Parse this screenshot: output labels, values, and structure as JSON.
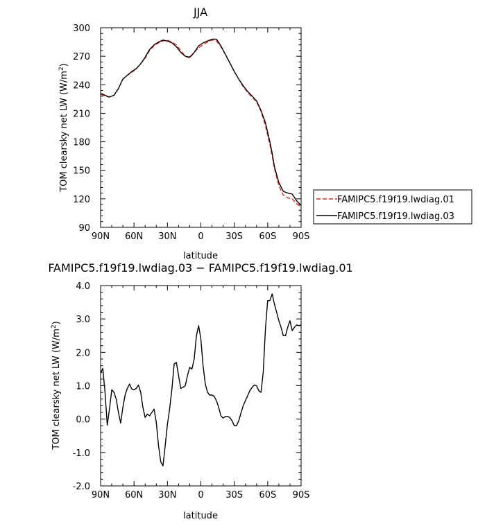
{
  "chart_data": [
    {
      "type": "line",
      "title": "JJA",
      "xlabel": "latitude",
      "ylabel": "TOM clearsky net LW (W/m²)",
      "xlim": [
        90,
        -90
      ],
      "ylim": [
        90,
        300
      ],
      "x_tick_values": [
        90,
        60,
        30,
        0,
        -30,
        -60,
        -90
      ],
      "x_tick_labels": [
        "90N",
        "60N",
        "30N",
        "0",
        "30S",
        "60S",
        "90S"
      ],
      "y_tick_values": [
        90,
        120,
        150,
        180,
        210,
        240,
        270,
        300
      ],
      "y_tick_labels": [
        "90",
        "120",
        "150",
        "180",
        "210",
        "240",
        "270",
        "300"
      ],
      "grid": false,
      "legend": "right",
      "series": [
        {
          "name": "FAMIPC5.f19f19.lwdiag.01",
          "color": "#e8261f",
          "dash": "dashed",
          "x": [
            90,
            86,
            82,
            78,
            74,
            70,
            66,
            62,
            58,
            54,
            50,
            46,
            42,
            38,
            34,
            30,
            26,
            22,
            18,
            14,
            10,
            6,
            2,
            -2,
            -6,
            -10,
            -14,
            -18,
            -22,
            -26,
            -30,
            -34,
            -38,
            -42,
            -46,
            -50,
            -54,
            -58,
            -62,
            -64,
            -66,
            -70,
            -74,
            -78,
            -82,
            -86,
            -90
          ],
          "y": [
            230,
            228,
            227,
            229,
            236,
            246,
            250,
            253,
            257,
            262,
            268,
            276,
            281,
            284,
            286,
            287,
            285,
            282,
            276,
            270,
            268,
            274,
            279,
            282,
            285,
            287,
            286,
            280,
            272,
            263,
            254,
            246,
            238,
            232,
            227,
            222,
            212,
            197,
            177,
            165,
            152,
            134,
            124,
            121,
            120,
            115,
            111
          ]
        },
        {
          "name": "FAMIPC5.f19f19.lwdiag.03",
          "color": "#000000",
          "dash": "solid",
          "x": [
            90,
            86,
            82,
            78,
            74,
            70,
            66,
            62,
            58,
            54,
            50,
            46,
            42,
            38,
            34,
            30,
            26,
            22,
            18,
            14,
            10,
            6,
            2,
            -2,
            -6,
            -10,
            -14,
            -18,
            -22,
            -26,
            -30,
            -34,
            -38,
            -42,
            -46,
            -50,
            -54,
            -58,
            -62,
            -64,
            -66,
            -70,
            -74,
            -78,
            -82,
            -86,
            -90
          ],
          "y": [
            231,
            229,
            227,
            229,
            236,
            246,
            250,
            254,
            257,
            262,
            269,
            277,
            282,
            285,
            287,
            286,
            284,
            280,
            274,
            270,
            269,
            274,
            281,
            284,
            286,
            288,
            288,
            281,
            272,
            263,
            254,
            246,
            239,
            233,
            228,
            223,
            213,
            200,
            180,
            168,
            154,
            137,
            128,
            126,
            125,
            118,
            113
          ]
        }
      ]
    },
    {
      "type": "line",
      "title": "FAMIPC5.f19f19.lwdiag.03 − FAMIPC5.f19f19.lwdiag.01",
      "xlabel": "latitude",
      "ylabel": "TOM clearsky net LW (W/m²)",
      "xlim": [
        90,
        -90
      ],
      "ylim": [
        -2.0,
        4.0
      ],
      "x_tick_values": [
        90,
        60,
        30,
        0,
        -30,
        -60,
        -90
      ],
      "x_tick_labels": [
        "90N",
        "60N",
        "30N",
        "0",
        "30S",
        "60S",
        "90S"
      ],
      "y_tick_values": [
        -2.0,
        -1.0,
        0.0,
        1.0,
        2.0,
        3.0,
        4.0
      ],
      "y_tick_labels": [
        "-2.0",
        "-1.0",
        "0.0",
        "1.0",
        "2.0",
        "3.0",
        "4.0"
      ],
      "grid": false,
      "series": [
        {
          "color": "#000000",
          "x": [
            90,
            88,
            86,
            84,
            82,
            80,
            78,
            76,
            74,
            72,
            70,
            68,
            66,
            64,
            62,
            60,
            58,
            56,
            54,
            52,
            50,
            48,
            46,
            44,
            42,
            40,
            38,
            36,
            34,
            32,
            30,
            28,
            26,
            24,
            22,
            20,
            18,
            16,
            14,
            12,
            10,
            8,
            6,
            4,
            2,
            0,
            -2,
            -4,
            -6,
            -8,
            -10,
            -12,
            -14,
            -16,
            -18,
            -20,
            -22,
            -24,
            -26,
            -28,
            -30,
            -32,
            -34,
            -36,
            -38,
            -40,
            -42,
            -44,
            -46,
            -48,
            -50,
            -52,
            -54,
            -56,
            -58,
            -60,
            -62,
            -64,
            -66,
            -68,
            -70,
            -72,
            -74,
            -76,
            -78,
            -80,
            -82,
            -84,
            -86,
            -88,
            -90
          ],
          "y": [
            1.38,
            1.52,
            0.8,
            -0.18,
            0.3,
            0.88,
            0.8,
            0.6,
            0.2,
            -0.12,
            0.35,
            0.72,
            0.92,
            1.05,
            0.9,
            0.88,
            0.92,
            1.02,
            0.8,
            0.35,
            0.05,
            0.15,
            0.1,
            0.2,
            0.3,
            -0.1,
            -0.8,
            -1.28,
            -1.4,
            -0.8,
            -0.15,
            0.3,
            0.9,
            1.65,
            1.7,
            1.3,
            0.92,
            0.95,
            1.0,
            1.3,
            1.55,
            1.5,
            1.8,
            2.5,
            2.8,
            2.4,
            1.6,
            1.05,
            0.8,
            0.72,
            0.72,
            0.68,
            0.55,
            0.35,
            0.1,
            0.03,
            0.08,
            0.08,
            0.05,
            -0.05,
            -0.2,
            -0.2,
            -0.05,
            0.18,
            0.4,
            0.55,
            0.7,
            0.85,
            0.95,
            1.02,
            1.0,
            0.85,
            0.8,
            1.4,
            2.7,
            3.55,
            3.55,
            3.75,
            3.45,
            3.2,
            2.95,
            2.75,
            2.5,
            2.5,
            2.75,
            2.95,
            2.65,
            2.75,
            2.82,
            2.8,
            2.82
          ]
        }
      ]
    }
  ]
}
